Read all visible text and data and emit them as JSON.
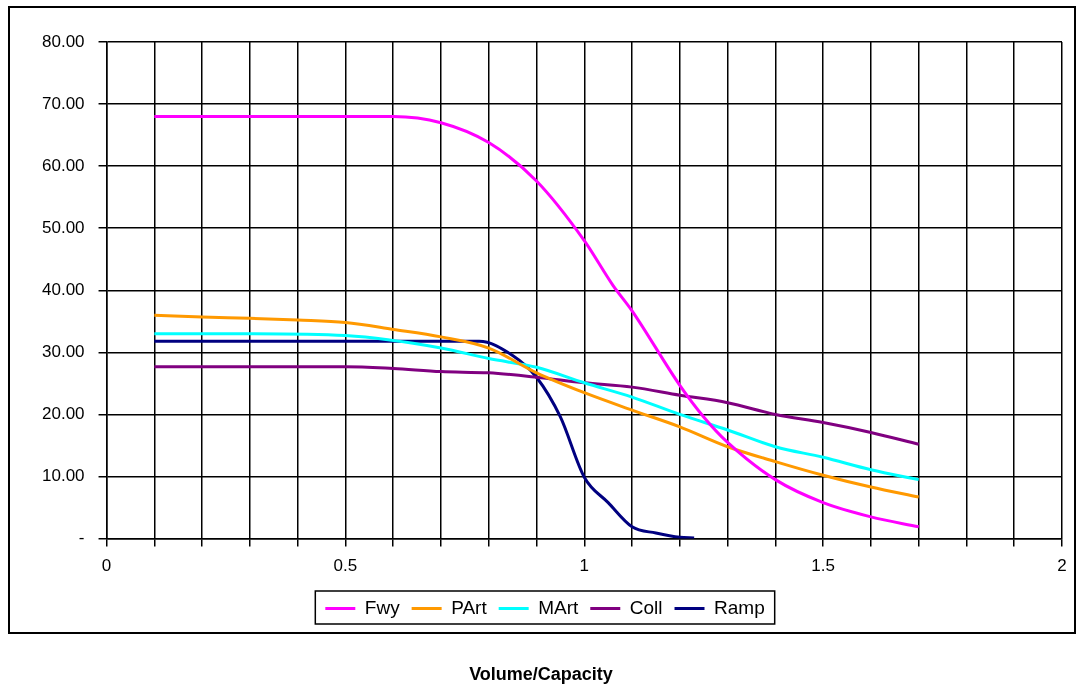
{
  "chart_data": {
    "type": "line",
    "xlabel": "Volume/Capacity",
    "xlim": [
      0,
      2
    ],
    "xticks": [
      0,
      {
        "value": 0.1,
        "label": null
      },
      {
        "value": 0.2,
        "label": null
      },
      {
        "value": 0.3,
        "label": null
      },
      {
        "value": 0.4,
        "label": null
      },
      0.5,
      {
        "value": 0.6,
        "label": null
      },
      {
        "value": 0.7,
        "label": null
      },
      {
        "value": 0.8,
        "label": null
      },
      {
        "value": 0.9,
        "label": null
      },
      1,
      {
        "value": 1.1,
        "label": null
      },
      {
        "value": 1.2,
        "label": null
      },
      {
        "value": 1.3,
        "label": null
      },
      {
        "value": 1.4,
        "label": null
      },
      1.5,
      {
        "value": 1.6,
        "label": null
      },
      {
        "value": 1.7,
        "label": null
      },
      {
        "value": 1.8,
        "label": null
      },
      {
        "value": 1.9,
        "label": null
      },
      2
    ],
    "ylim": [
      0,
      80
    ],
    "yticks": [
      {
        "value": 0,
        "label": "-"
      },
      {
        "value": 10,
        "label": "10.00"
      },
      {
        "value": 20,
        "label": "20.00"
      },
      {
        "value": 30,
        "label": "30.00"
      },
      {
        "value": 40,
        "label": "40.00"
      },
      {
        "value": 50,
        "label": "50.00"
      },
      {
        "value": 60,
        "label": "60.00"
      },
      {
        "value": 70,
        "label": "70.00"
      },
      {
        "value": 80,
        "label": "80.00"
      }
    ],
    "grid": true,
    "legend": "bottom",
    "marker": "none",
    "line_style": "solid",
    "series": [
      {
        "name": "Fwy",
        "color": "#ff00ff",
        "x": [
          0.1,
          0.2,
          0.3,
          0.4,
          0.5,
          0.6,
          0.7,
          0.8,
          0.9,
          1.0,
          1.06,
          1.1,
          1.2,
          1.25,
          1.3,
          1.4,
          1.5,
          1.6,
          1.7
        ],
        "values": [
          68,
          68,
          68,
          68,
          68,
          68,
          67,
          63.8,
          57.6,
          48,
          40.8,
          36.7,
          24.7,
          19.6,
          15.5,
          9.5,
          5.8,
          3.5,
          1.9
        ]
      },
      {
        "name": "PArt",
        "color": "#ff9900",
        "x": [
          0.1,
          0.2,
          0.3,
          0.4,
          0.5,
          0.6,
          0.7,
          0.8,
          0.9,
          1.0,
          1.1,
          1.2,
          1.3,
          1.4,
          1.5,
          1.6,
          1.7
        ],
        "values": [
          36,
          35.7,
          35.5,
          35.2,
          34.8,
          33.7,
          32.5,
          30.7,
          26.7,
          23.5,
          20.7,
          18,
          14.8,
          12.4,
          10.2,
          8.3,
          6.7
        ]
      },
      {
        "name": "MArt",
        "color": "#00ffff",
        "x": [
          0.1,
          0.3,
          0.5,
          0.7,
          0.8,
          0.9,
          1.0,
          1.1,
          1.2,
          1.3,
          1.4,
          1.5,
          1.6,
          1.7
        ],
        "values": [
          33,
          33,
          32.7,
          30.7,
          29,
          27.6,
          25.1,
          22.8,
          20,
          17.5,
          14.8,
          13.1,
          11.1,
          9.5
        ]
      },
      {
        "name": "Coll",
        "color": "#800080",
        "x": [
          0.1,
          0.5,
          0.6,
          0.7,
          0.8,
          0.9,
          1.0,
          1.1,
          1.2,
          1.3,
          1.4,
          1.5,
          1.6,
          1.7
        ],
        "values": [
          27.7,
          27.7,
          27.4,
          26.9,
          26.7,
          26,
          25.1,
          24.4,
          23.1,
          21.9,
          20,
          18.7,
          17.1,
          15.2
        ]
      },
      {
        "name": "Ramp",
        "color": "#000080",
        "x": [
          0.1,
          0.5,
          0.78,
          0.85,
          0.9,
          0.95,
          1.0,
          1.05,
          1.1,
          1.15,
          1.2,
          1.23
        ],
        "values": [
          31.8,
          31.8,
          31.8,
          29.5,
          26,
          19.6,
          9.9,
          5.8,
          1.9,
          0.9,
          0.2,
          0.1
        ]
      }
    ]
  }
}
